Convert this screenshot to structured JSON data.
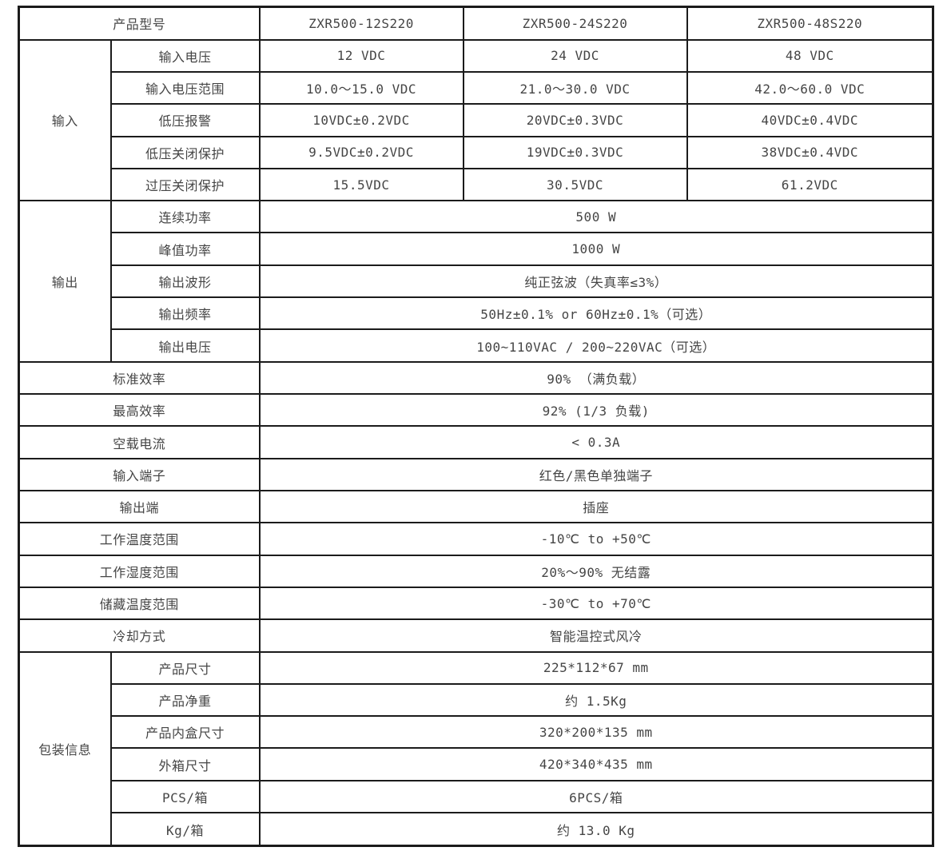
{
  "colors": {
    "border": "#1b1b1b",
    "text": "#454545",
    "background": "#ffffff"
  },
  "table": {
    "model_row": {
      "label": "产品型号",
      "values": [
        "ZXR500-12S220",
        "ZXR500-24S220",
        "ZXR500-48S220"
      ]
    },
    "input": {
      "group": "输入",
      "rows": [
        {
          "label": "输入电压",
          "values": [
            "12 VDC",
            "24 VDC",
            "48 VDC"
          ]
        },
        {
          "label": "输入电压范围",
          "values": [
            "10.0～15.0 VDC",
            "21.0～30.0 VDC",
            "42.0～60.0 VDC"
          ]
        },
        {
          "label": "低压报警",
          "values": [
            "10VDC±0.2VDC",
            "20VDC±0.3VDC",
            "40VDC±0.4VDC"
          ]
        },
        {
          "label": "低压关闭保护",
          "values": [
            "9.5VDC±0.2VDC",
            "19VDC±0.3VDC",
            "38VDC±0.4VDC"
          ]
        },
        {
          "label": "过压关闭保护",
          "values": [
            "15.5VDC",
            "30.5VDC",
            "61.2VDC"
          ]
        }
      ]
    },
    "output": {
      "group": "输出",
      "rows": [
        {
          "label": "连续功率",
          "value": "500 W"
        },
        {
          "label": "峰值功率",
          "value": "1000 W"
        },
        {
          "label": "输出波形",
          "value": "纯正弦波（失真率≤3%）"
        },
        {
          "label": "输出频率",
          "value": "50Hz±0.1% or 60Hz±0.1%（可选）"
        },
        {
          "label": "输出电压",
          "value": "100~110VAC / 200~220VAC（可选）"
        }
      ]
    },
    "general": {
      "rows": [
        {
          "label": "标准效率",
          "value": "90% （满负载）"
        },
        {
          "label": "最高效率",
          "value": "92% (1/3 负载)"
        },
        {
          "label": "空载电流",
          "value": "< 0.3A"
        },
        {
          "label": "输入端子",
          "value": "红色/黑色单独端子"
        },
        {
          "label": "输出端",
          "value": "插座"
        },
        {
          "label": "工作温度范围",
          "value": "-10℃ to +50℃"
        },
        {
          "label": "工作湿度范围",
          "value": "20%～90% 无结露"
        },
        {
          "label": "储藏温度范围",
          "value": "-30℃ to +70℃"
        },
        {
          "label": "冷却方式",
          "value": "智能温控式风冷"
        }
      ]
    },
    "packaging": {
      "group": "包装信息",
      "rows": [
        {
          "label": "产品尺寸",
          "value": "225*112*67 mm"
        },
        {
          "label": "产品净重",
          "value": "约 1.5Kg"
        },
        {
          "label": "产品内盒尺寸",
          "value": "320*200*135 mm"
        },
        {
          "label": "外箱尺寸",
          "value": "420*340*435 mm"
        },
        {
          "label": "PCS/箱",
          "value": "6PCS/箱"
        },
        {
          "label": "Kg/箱",
          "value": "约 13.0 Kg"
        }
      ]
    }
  }
}
